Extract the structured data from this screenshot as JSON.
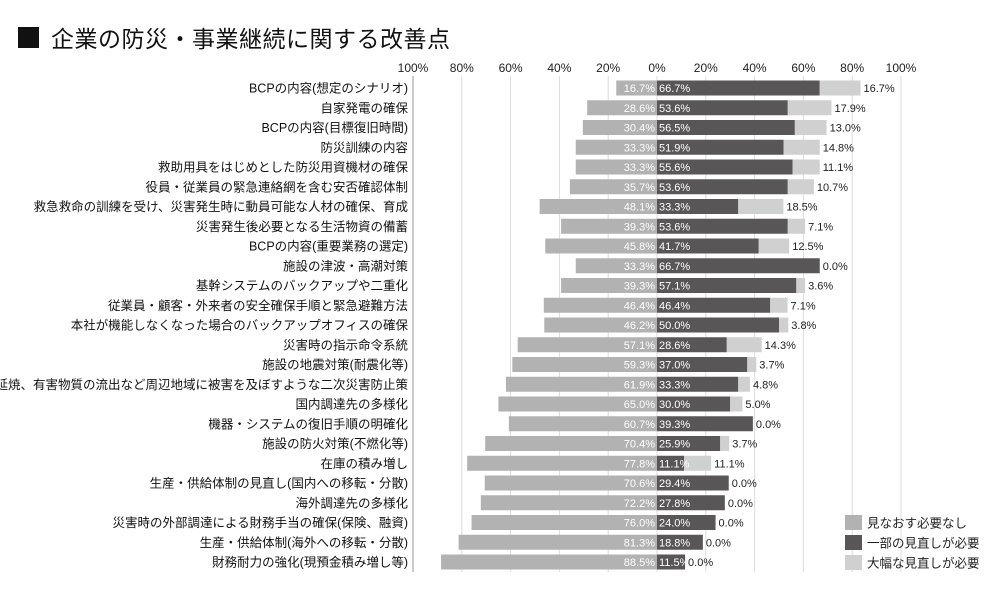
{
  "title": "企業の防災・事業継続に関する改善点",
  "chart_data": {
    "type": "bar",
    "orientation": "horizontal-diverging",
    "title": "企業の防災・事業継続に関する改善点",
    "xlabel": "",
    "ylabel": "",
    "xlim_left": [
      0,
      100
    ],
    "xlim_right": [
      0,
      100
    ],
    "x_ticks": [
      "100%",
      "80%",
      "60%",
      "40%",
      "20%",
      "0%",
      "20%",
      "40%",
      "60%",
      "80%",
      "100%"
    ],
    "grid": true,
    "legend_position": "bottom-right",
    "colors": {
      "none": "#b2b2b2",
      "partial": "#595657",
      "major": "#d0d0d0"
    },
    "categories": [
      "BCPの内容(想定のシナリオ)",
      "自家発電の確保",
      "BCPの内容(目標復旧時間)",
      "防災訓練の内容",
      "救助用具をはじめとした防災用資機材の確保",
      "役員・従業員の緊急連絡網を含む安否確認体制",
      "救急救命の訓練を受け、災害発生時に動員可能な人材の確保、育成",
      "災害発生後必要となる生活物資の備蓄",
      "BCPの内容(重要業務の選定)",
      "施設の津波・高潮対策",
      "基幹システムのバックアップや二重化",
      "従業員・顧客・外来者の安全確保手順と緊急避難方法",
      "本社が機能しなくなった場合のバックアップオフィスの確保",
      "災害時の指示命令系統",
      "施設の地震対策(耐震化等)",
      "爆発や延焼、有害物質の流出など周辺地域に被害を及ぼすような二次災害防止策",
      "国内調達先の多様化",
      "機器・システムの復旧手順の明確化",
      "施設の防火対策(不燃化等)",
      "在庫の積み増し",
      "生産・供給体制の見直し(国内への移転・分散)",
      "海外調達先の多様化",
      "災害時の外部調達による財務手当の確保(保険、融資)",
      "生産・供給体制(海外への移転・分散)",
      "財務耐力の強化(現預金積み増し等)"
    ],
    "series": [
      {
        "name": "見なおす必要なし",
        "side": "left",
        "values": [
          16.7,
          28.6,
          30.4,
          33.3,
          33.3,
          35.7,
          48.1,
          39.3,
          45.8,
          33.3,
          39.3,
          46.4,
          46.2,
          57.1,
          59.3,
          61.9,
          65.0,
          60.7,
          70.4,
          77.8,
          70.6,
          72.2,
          76.0,
          81.3,
          88.5
        ]
      },
      {
        "name": "一部の見直しが必要",
        "side": "right",
        "values": [
          66.7,
          53.6,
          56.5,
          51.9,
          55.6,
          53.6,
          33.3,
          53.6,
          41.7,
          66.7,
          57.1,
          46.4,
          50.0,
          28.6,
          37.0,
          33.3,
          30.0,
          39.3,
          25.9,
          11.1,
          29.4,
          27.8,
          24.0,
          18.8,
          11.5
        ]
      },
      {
        "name": "大幅な見直しが必要",
        "side": "right",
        "values": [
          16.7,
          17.9,
          13.0,
          14.8,
          11.1,
          10.7,
          18.5,
          7.1,
          12.5,
          0.0,
          3.6,
          7.1,
          3.8,
          14.3,
          3.7,
          4.8,
          5.0,
          0.0,
          3.7,
          11.1,
          0.0,
          0.0,
          0.0,
          0.0,
          0.0
        ]
      }
    ]
  }
}
